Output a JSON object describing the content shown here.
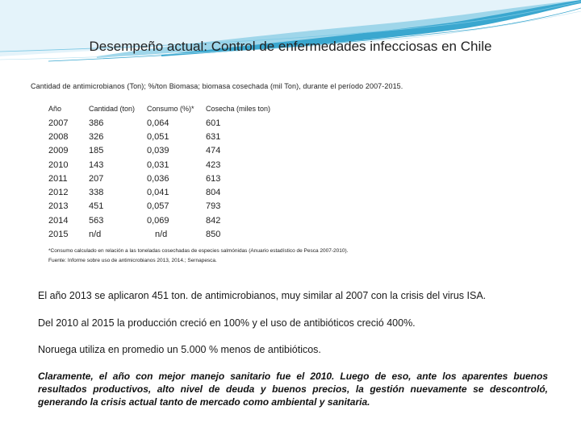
{
  "slide": {
    "title": "Desempeño actual: Control de enfermedades infecciosas en Chile",
    "subtitle": "Cantidad de antimicrobianos (Ton); %/ton Biomasa; biomasa cosechada (mil Ton), durante el período 2007-2015."
  },
  "table": {
    "headers": {
      "year": "Año",
      "quantity": "Cantidad (ton)",
      "consumption": "Consumo (%)*",
      "harvest": "Cosecha (miles ton)"
    },
    "rows": [
      {
        "year": "2007",
        "quantity": "386",
        "consumption": "0,064",
        "harvest": "601"
      },
      {
        "year": "2008",
        "quantity": "326",
        "consumption": "0,051",
        "harvest": "631"
      },
      {
        "year": "2009",
        "quantity": "185",
        "consumption": "0,039",
        "harvest": "474"
      },
      {
        "year": "2010",
        "quantity": "143",
        "consumption": "0,031",
        "harvest": "423"
      },
      {
        "year": "2011",
        "quantity": "207",
        "consumption": "0,036",
        "harvest": "613"
      },
      {
        "year": "2012",
        "quantity": "338",
        "consumption": "0,041",
        "harvest": "804"
      },
      {
        "year": "2013",
        "quantity": "451",
        "consumption": "0,057",
        "harvest": "793"
      },
      {
        "year": "2014",
        "quantity": "563",
        "consumption": "0,069",
        "harvest": "842"
      },
      {
        "year": "2015",
        "quantity": "n/d",
        "consumption": "n/d",
        "harvest": "850"
      }
    ]
  },
  "footnotes": {
    "note1": "*Consumo calculado en relación a las toneladas cosechadas de especies salmónidas (Anuario estadístico de Pesca 2007-2010).",
    "note2": "Fuente: Informe sobre uso de antimicrobianos 2013, 2014.; Sernapesca."
  },
  "paragraphs": {
    "p1": "El año 2013 se aplicaron 451 ton. de antimicrobianos, muy similar al 2007 con la crisis del virus ISA.",
    "p2": "Del 2010 al 2015 la producción creció en 100% y el uso de antibióticos creció 400%.",
    "p3": "Noruega utiliza en promedio un 5.000 % menos de antibióticos.",
    "conclusion": "Claramente, el año con mejor manejo sanitario fue el 2010. Luego de eso, ante los aparentes buenos resultados productivos, alto nivel de deuda y buenos precios, la gestión nuevamente se descontroló, generando la crisis actual tanto de mercado como ambiental y sanitaria."
  },
  "colors": {
    "wave_dark": "#3aa7cf",
    "wave_mid": "#7cc8e4",
    "wave_light": "#cfeaf5"
  }
}
